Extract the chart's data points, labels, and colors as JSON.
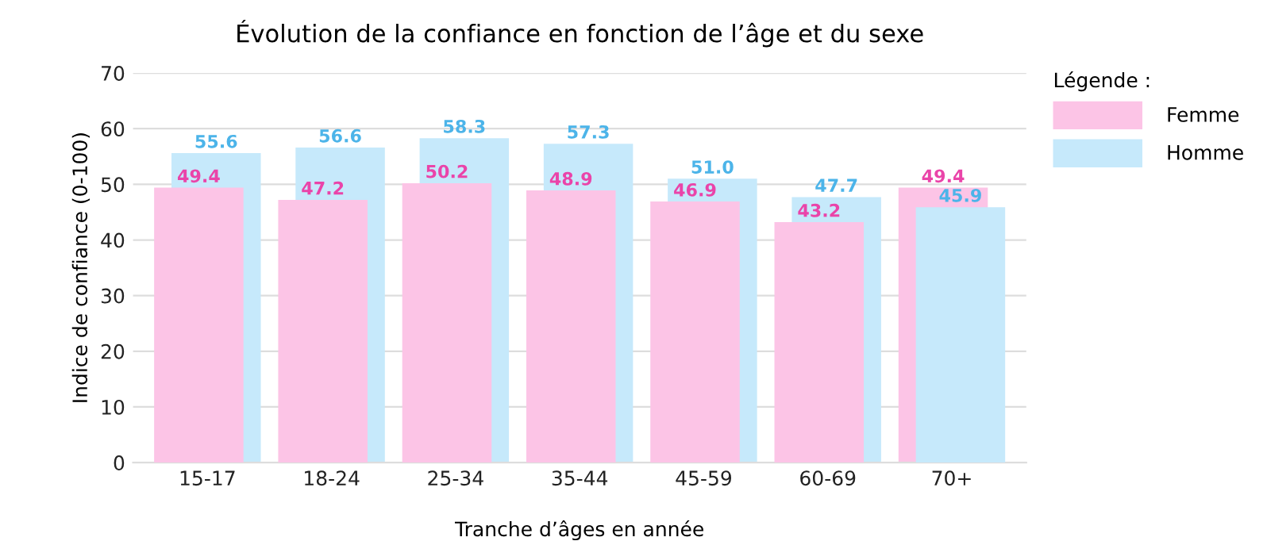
{
  "chart_data": {
    "type": "bar",
    "title": "Évolution de la confiance en fonction de l’âge et du sexe",
    "xlabel": "Tranche d’âges en année",
    "ylabel": "Indice de confiance (0-100)",
    "legend_title": "Légende :",
    "categories": [
      "15-17",
      "18-24",
      "25-34",
      "35-44",
      "45-59",
      "60-69",
      "70+"
    ],
    "series": [
      {
        "name": "Femme",
        "color": "#fcc4e6",
        "values": [
          49.4,
          47.2,
          50.2,
          48.9,
          46.9,
          43.2,
          49.4
        ],
        "value_labels": [
          "49.4",
          "47.2",
          "50.2",
          "48.9",
          "46.9",
          "43.2",
          "49.4"
        ]
      },
      {
        "name": "Homme",
        "color": "#c6e9fb",
        "values": [
          55.6,
          56.6,
          58.3,
          57.3,
          51.0,
          47.7,
          45.9
        ],
        "value_labels": [
          "55.6",
          "56.6",
          "58.3",
          "57.3",
          "51.0",
          "47.7",
          "45.9"
        ]
      }
    ],
    "ylim": [
      0,
      70
    ],
    "yticks": [
      0,
      10,
      20,
      30,
      40,
      50,
      60,
      70
    ],
    "grid": "y",
    "legend": "top right"
  }
}
